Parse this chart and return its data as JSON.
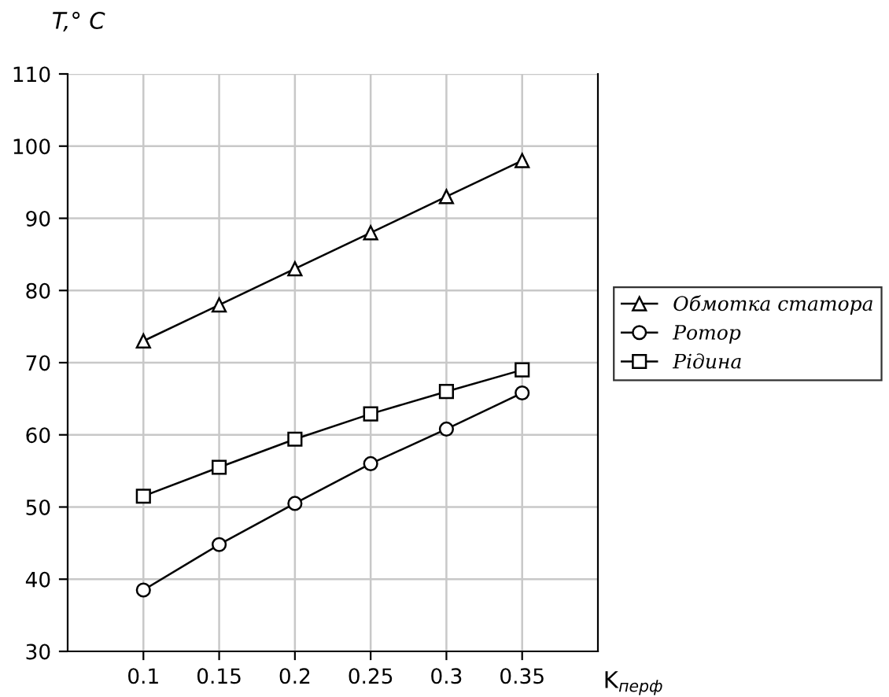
{
  "chart_data": {
    "type": "line",
    "xlabel": "K$_{перф}$",
    "ylabel": "T,° C",
    "x": [
      0.1,
      0.15,
      0.2,
      0.25,
      0.3,
      0.35
    ],
    "series": [
      {
        "name": "Обмотка статора",
        "color": "#000000",
        "marker": "triangle",
        "values": [
          73,
          78,
          83,
          88,
          93,
          98
        ]
      },
      {
        "name": "Ротор",
        "color": "#000000",
        "marker": "circle",
        "values": [
          38.5,
          44.8,
          50.5,
          56,
          60.8,
          65.8
        ]
      },
      {
        "name": "Рідина",
        "color": "#000000",
        "marker": "square",
        "values": [
          51.5,
          55.5,
          59.4,
          62.9,
          66,
          69
        ]
      }
    ],
    "xlim": [
      0.05,
      0.4
    ],
    "xticks": [
      0.1,
      0.15,
      0.2,
      0.25,
      0.3,
      0.35
    ],
    "ylim": [
      30,
      110
    ],
    "yticks": [
      30,
      40,
      50,
      60,
      70,
      80,
      90,
      100,
      110
    ],
    "grid": true,
    "legend": "right",
    "line_style": "solid"
  }
}
